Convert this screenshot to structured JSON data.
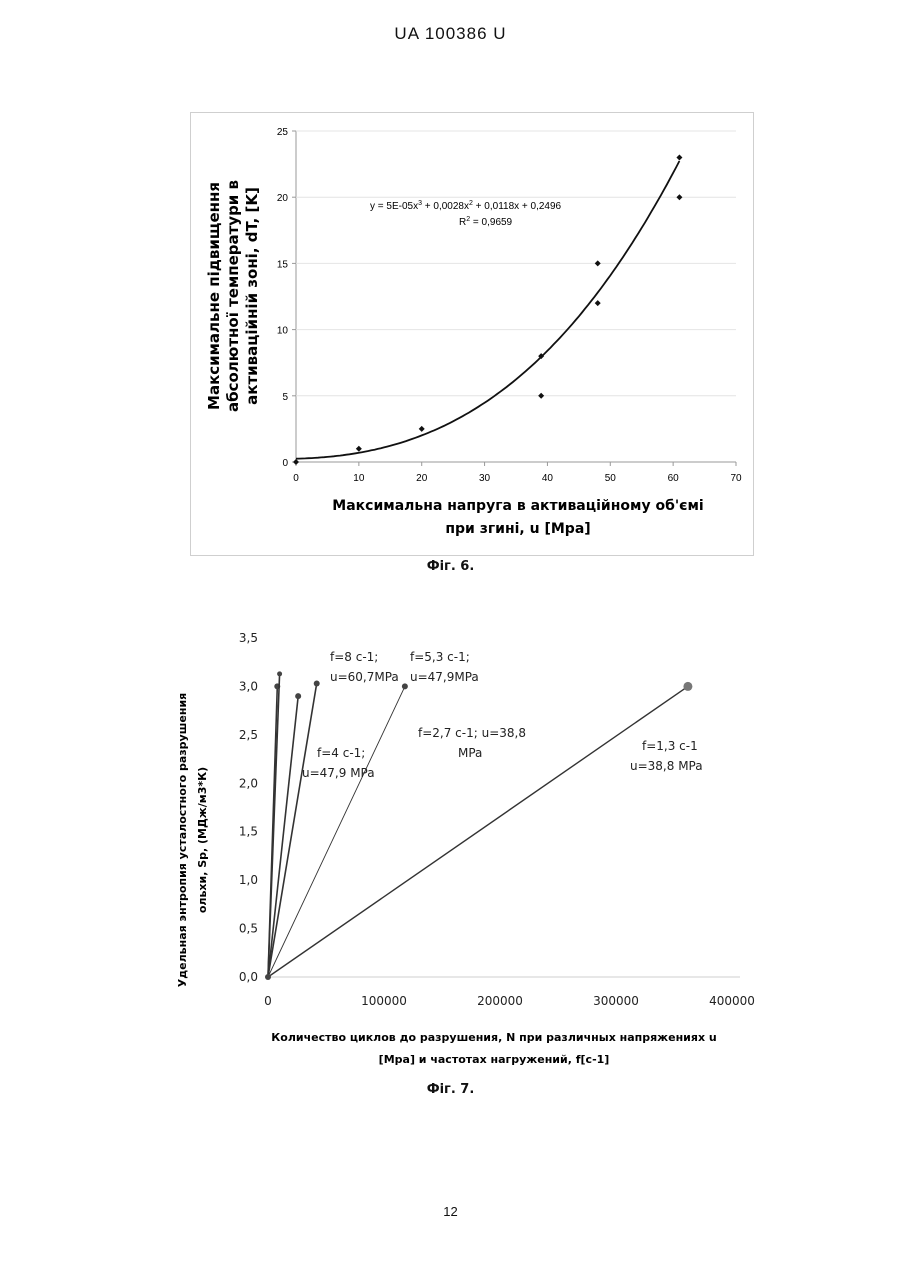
{
  "header": {
    "text": "UA   100386   U"
  },
  "page_number": "12",
  "figures": [
    {
      "caption": "Фіг. 6."
    },
    {
      "caption": "Фіг. 7."
    }
  ],
  "chart_data": [
    {
      "type": "scatter",
      "xlabel_lines": [
        "Максимальна напруга в активаційному об'ємі",
        "при згині, u [Mpa]"
      ],
      "ylabel_lines": [
        "Максимальне підвищення",
        "абсолютної температури в",
        "активаційній зоні, dT, [K]"
      ],
      "xlim": [
        0,
        70
      ],
      "ylim": [
        0,
        25
      ],
      "x_ticks": [
        "0",
        "10",
        "20",
        "30",
        "40",
        "50",
        "60",
        "70"
      ],
      "y_ticks": [
        "0",
        "5",
        "10",
        "15",
        "20",
        "25"
      ],
      "grid": false,
      "points": [
        {
          "x": 0,
          "y": 0
        },
        {
          "x": 10,
          "y": 1
        },
        {
          "x": 20,
          "y": 2.5
        },
        {
          "x": 39,
          "y": 8
        },
        {
          "x": 39,
          "y": 5
        },
        {
          "x": 48,
          "y": 15
        },
        {
          "x": 48,
          "y": 12
        },
        {
          "x": 61,
          "y": 23
        },
        {
          "x": 61,
          "y": 20
        }
      ],
      "trendline": {
        "coefficients": [
          5e-05,
          0.0028,
          0.0118,
          0.2496
        ],
        "x_range": [
          0,
          61
        ]
      },
      "annotations": {
        "equation_parts": [
          "y = 5E-05x",
          "3",
          " + 0,0028x",
          "2",
          " + 0,0118x + 0,2496"
        ],
        "r2_parts": [
          "R",
          "2",
          " = 0,9659"
        ]
      }
    },
    {
      "type": "line",
      "xlabel_lines": [
        "Количество циклов до разрушения, N при различных напряжениях u",
        "[Mpa] и частотах нагружений, f[c-1]"
      ],
      "ylabel_lines": [
        "Удельная энтропия усталостного разрушения",
        "ольхи, Sp, (МДж/м3*К)"
      ],
      "xlim": [
        0,
        400000
      ],
      "ylim": [
        0,
        3.5
      ],
      "x_ticks": [
        "0",
        "100000",
        "200000",
        "300000",
        "400000"
      ],
      "y_ticks": [
        "0,0",
        "0,5",
        "1,0",
        "1,5",
        "2,0",
        "2,5",
        "3,0",
        "3,5"
      ],
      "grid": false,
      "series": [
        {
          "label_lines": [
            "f=8 c-1;",
            "u=60,7MPa"
          ],
          "x": [
            0,
            8000
          ],
          "y": [
            0,
            3.0
          ]
        },
        {
          "x": [
            0,
            10000
          ],
          "y": [
            0,
            3.13
          ]
        },
        {
          "label_lines": [
            "f=4 c-1;",
            "u=47,9 MPa"
          ],
          "x": [
            0,
            26000
          ],
          "y": [
            0,
            2.9
          ]
        },
        {
          "x": [
            0,
            42000
          ],
          "y": [
            0,
            3.03
          ]
        },
        {
          "label_lines": [
            "f=5,3 c-1;",
            "u=47,9MPa"
          ],
          "x": [
            0,
            118000
          ],
          "y": [
            0,
            3.0
          ]
        },
        {
          "label_lines": [
            "f=2,7 c-1; u=38,8",
            "MPa"
          ],
          "x": [],
          "y": []
        },
        {
          "label_lines": [
            "f=1,3 c-1",
            "u=38,8 MPa"
          ],
          "x": [
            0,
            362000
          ],
          "y": [
            0,
            3.0
          ]
        }
      ]
    }
  ]
}
